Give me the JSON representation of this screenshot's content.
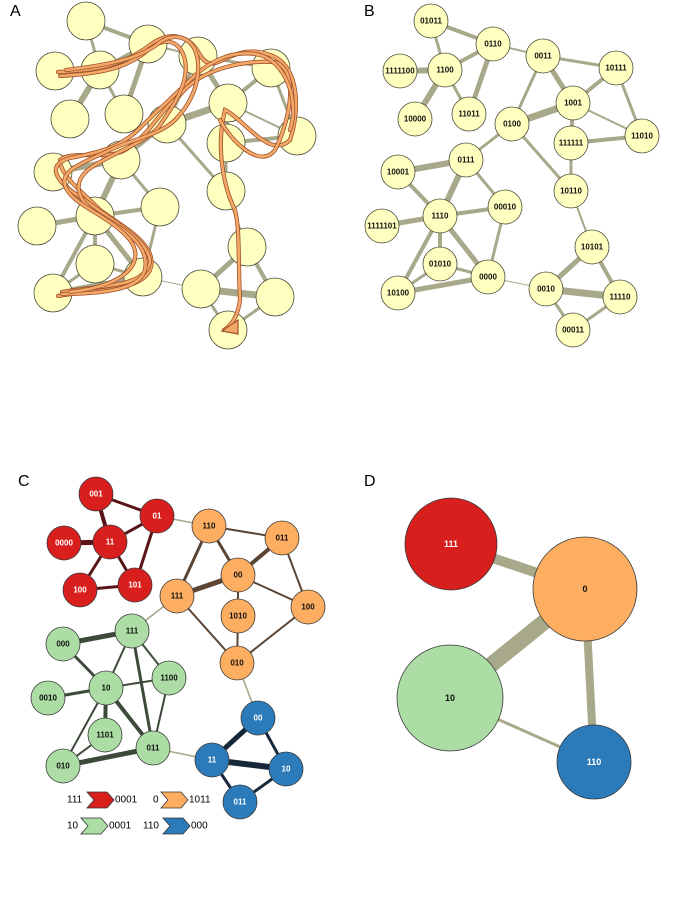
{
  "panels": {
    "A": {
      "label": "A"
    },
    "B": {
      "label": "B"
    },
    "C": {
      "label": "C"
    },
    "D": {
      "label": "D"
    }
  },
  "colors": {
    "node_yellow": "#ffffc0",
    "trajectory_orange": "#f5a968",
    "edge_grey": "#a8a88a",
    "group_red": "#d91e1e",
    "group_orange": "#fdae61",
    "group_green": "#abdda4",
    "group_blue": "#2b7bba"
  },
  "graph_B": {
    "nodes": [
      {
        "id": "01011",
        "label": "01011"
      },
      {
        "id": "0110",
        "label": "0110"
      },
      {
        "id": "0011",
        "label": "0011"
      },
      {
        "id": "10111",
        "label": "10111"
      },
      {
        "id": "1111100",
        "label": "1111100"
      },
      {
        "id": "1100",
        "label": "1100"
      },
      {
        "id": "1001",
        "label": "1001"
      },
      {
        "id": "10000",
        "label": "10000"
      },
      {
        "id": "11011",
        "label": "11011"
      },
      {
        "id": "0100",
        "label": "0100"
      },
      {
        "id": "11010",
        "label": "11010"
      },
      {
        "id": "111111",
        "label": "111111"
      },
      {
        "id": "0111",
        "label": "0111"
      },
      {
        "id": "10001",
        "label": "10001"
      },
      {
        "id": "10110",
        "label": "10110"
      },
      {
        "id": "1111101",
        "label": "1111101"
      },
      {
        "id": "1110",
        "label": "1110"
      },
      {
        "id": "00010",
        "label": "00010"
      },
      {
        "id": "10101",
        "label": "10101"
      },
      {
        "id": "01010",
        "label": "01010"
      },
      {
        "id": "0000",
        "label": "0000"
      },
      {
        "id": "0010",
        "label": "0010"
      },
      {
        "id": "10100",
        "label": "10100"
      },
      {
        "id": "11110",
        "label": "11110"
      },
      {
        "id": "00011",
        "label": "00011"
      }
    ]
  },
  "graph_C": {
    "nodes": [
      {
        "id": "c001",
        "label": "001",
        "group": "red"
      },
      {
        "id": "c01",
        "label": "01",
        "group": "red"
      },
      {
        "id": "c0000",
        "label": "0000",
        "group": "red"
      },
      {
        "id": "c11r",
        "label": "11",
        "group": "red"
      },
      {
        "id": "c100",
        "label": "100",
        "group": "red"
      },
      {
        "id": "c101",
        "label": "101",
        "group": "red"
      },
      {
        "id": "c110",
        "label": "110",
        "group": "orange"
      },
      {
        "id": "c011o",
        "label": "011",
        "group": "orange"
      },
      {
        "id": "c00o",
        "label": "00",
        "group": "orange"
      },
      {
        "id": "c111",
        "label": "111",
        "group": "orange"
      },
      {
        "id": "c1010",
        "label": "1010",
        "group": "orange"
      },
      {
        "id": "c100o",
        "label": "100",
        "group": "orange"
      },
      {
        "id": "c010o",
        "label": "010",
        "group": "orange"
      },
      {
        "id": "c000",
        "label": "000",
        "group": "green"
      },
      {
        "id": "c111g",
        "label": "111",
        "group": "green"
      },
      {
        "id": "c0010",
        "label": "0010",
        "group": "green"
      },
      {
        "id": "c10",
        "label": "10",
        "group": "green"
      },
      {
        "id": "c1100",
        "label": "1100",
        "group": "green"
      },
      {
        "id": "c1101",
        "label": "1101",
        "group": "green"
      },
      {
        "id": "c010g",
        "label": "010",
        "group": "green"
      },
      {
        "id": "c011g",
        "label": "011",
        "group": "green"
      },
      {
        "id": "c00b",
        "label": "00",
        "group": "blue"
      },
      {
        "id": "c11b",
        "label": "11",
        "group": "blue"
      },
      {
        "id": "c10b",
        "label": "10",
        "group": "blue"
      },
      {
        "id": "c011b",
        "label": "011",
        "group": "blue"
      }
    ],
    "legend": [
      {
        "left": "111",
        "right": "0001",
        "color": "#d91e1e"
      },
      {
        "left": "0",
        "right": "1011",
        "color": "#fdae61"
      },
      {
        "left": "10",
        "right": "0001",
        "color": "#abdda4"
      },
      {
        "left": "110",
        "right": "000",
        "color": "#2b7bba"
      }
    ]
  },
  "graph_D": {
    "nodes": [
      {
        "id": "d111",
        "label": "111",
        "color": "#d91e1e"
      },
      {
        "id": "d0",
        "label": "0",
        "color": "#fdae61"
      },
      {
        "id": "d10",
        "label": "10",
        "color": "#abdda4"
      },
      {
        "id": "d110",
        "label": "110",
        "color": "#2b7bba"
      }
    ]
  }
}
